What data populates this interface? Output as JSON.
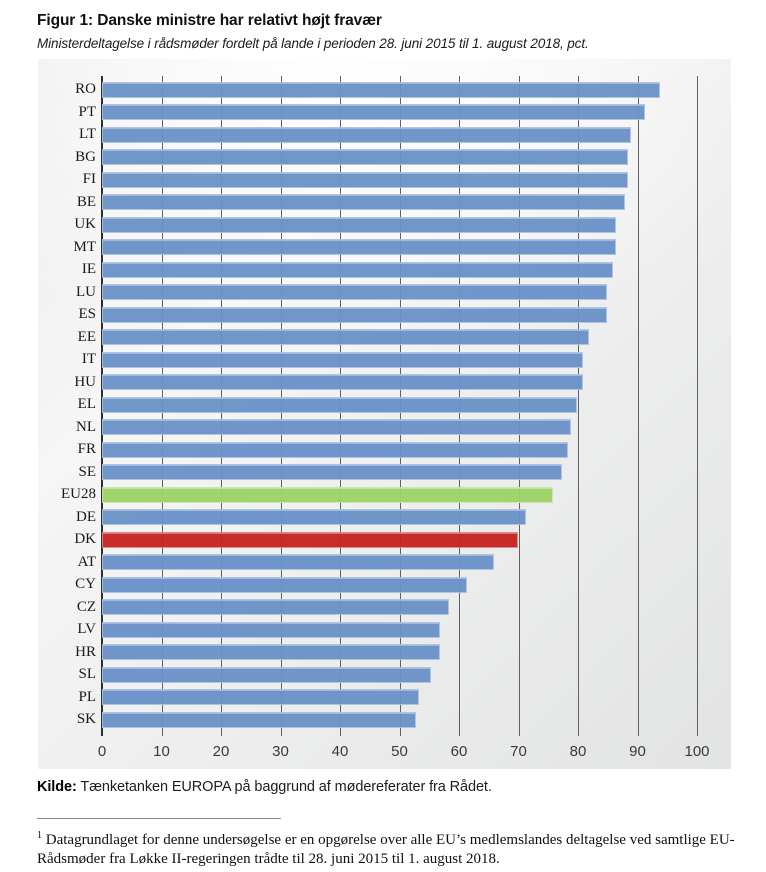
{
  "header": {
    "title": "Figur 1: Danske ministre har relativt højt fravær",
    "subtitle": "Ministerdeltagelse i rådsmøder fordelt på lande i perioden 28. juni 2015 til 1. august 2018, pct."
  },
  "chart_data": {
    "type": "bar",
    "orientation": "horizontal",
    "title": "Figur 1: Danske ministre har relativt højt fravær",
    "subtitle": "Ministerdeltagelse i rådsmøder fordelt på lande i perioden 28. juni 2015 til 1. august 2018, pct.",
    "categories": [
      "RO",
      "PT",
      "LT",
      "BG",
      "FI",
      "BE",
      "UK",
      "MT",
      "IE",
      "LU",
      "ES",
      "EE",
      "IT",
      "HU",
      "EL",
      "NL",
      "FR",
      "SE",
      "EU28",
      "DE",
      "DK",
      "AT",
      "CY",
      "CZ",
      "LV",
      "HR",
      "SL",
      "PL",
      "SK"
    ],
    "values": [
      93.5,
      91,
      88.5,
      88,
      88,
      87.5,
      86,
      86,
      85.5,
      84.5,
      84.5,
      81.5,
      80.5,
      80.5,
      79.5,
      78.5,
      78,
      77,
      75.5,
      71,
      69.5,
      65.5,
      61,
      58,
      56.5,
      56.5,
      55,
      53,
      52.5
    ],
    "xlim": [
      0,
      100
    ],
    "x_ticks": [
      0,
      10,
      20,
      30,
      40,
      50,
      60,
      70,
      80,
      90,
      100
    ],
    "grid": "vertical",
    "legend": "none",
    "colors": {
      "default": "#6991C8",
      "EU28": "#9ED367",
      "DK": "#C7221F"
    }
  },
  "source": {
    "label": "Kilde:",
    "text": " Tænketanken EUROPA på baggrund af mødereferater fra Rådet."
  },
  "footnote": {
    "marker": "1",
    "text": " Datagrundlaget for denne undersøgelse er en opgørelse over alle EU’s medlemslandes deltagelse ved samtlige EU-Rådsmøder fra Løkke II-regeringen trådte til 28. juni 2015 til 1. august 2018."
  }
}
